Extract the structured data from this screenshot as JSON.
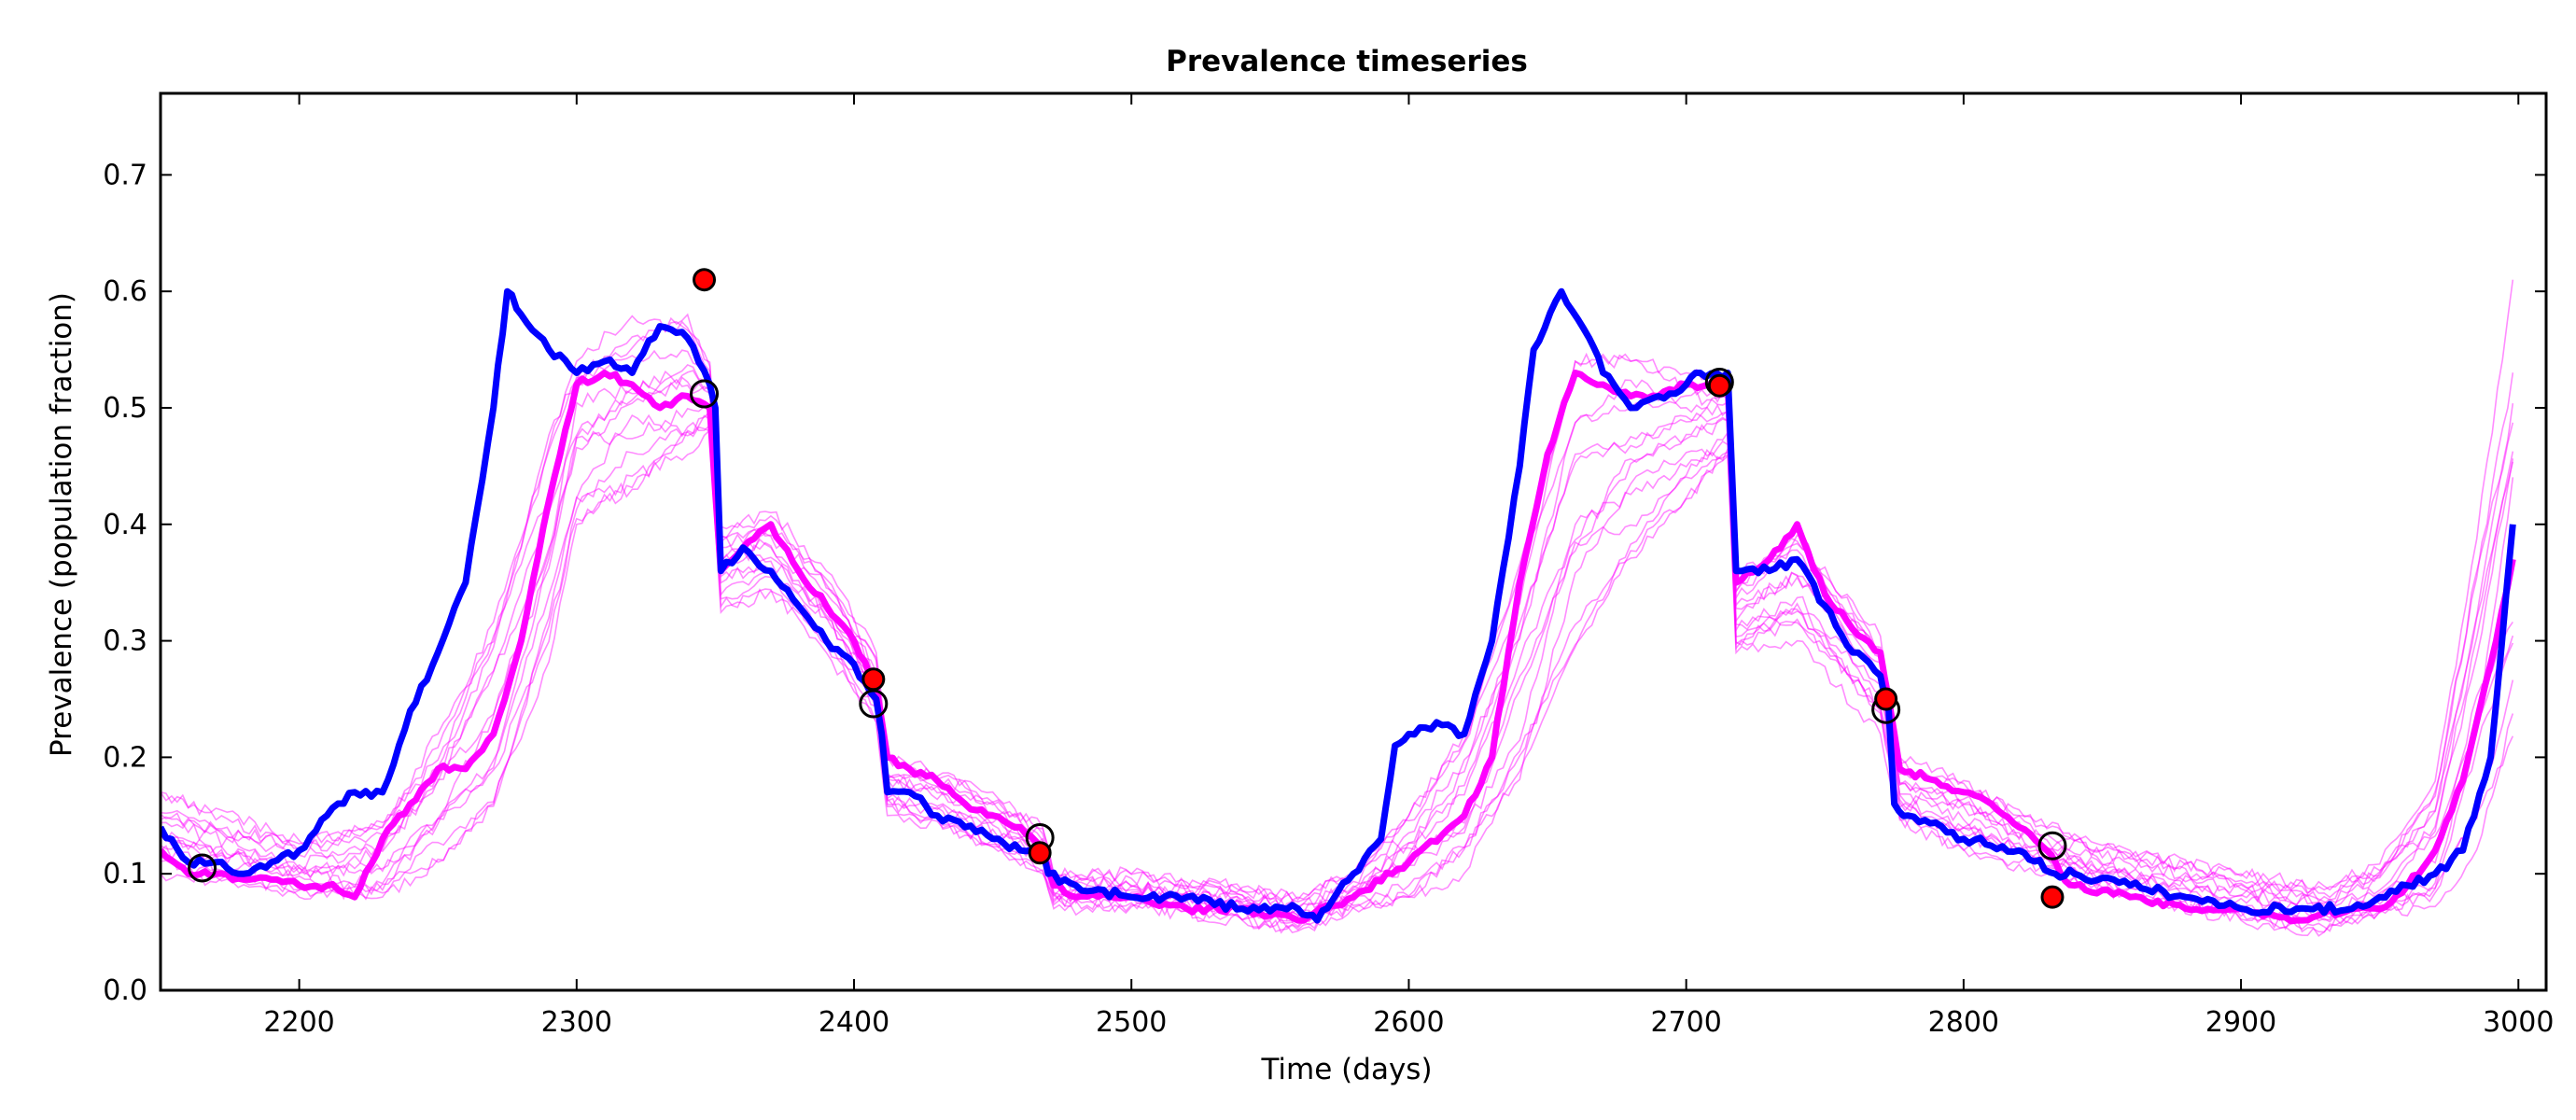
{
  "chart_data": {
    "type": "line",
    "title": "Prevalence timeseries",
    "xlabel": "Time (days)",
    "ylabel": "Prevalence (population fraction)",
    "xlim": [
      2150,
      3010
    ],
    "ylim": [
      0.0,
      0.77
    ],
    "xticks": [
      "2200",
      "2300",
      "2400",
      "2500",
      "2600",
      "2700",
      "2800",
      "2900",
      "3000"
    ],
    "yticks": [
      "0.0",
      "0.1",
      "0.2",
      "0.3",
      "0.4",
      "0.5",
      "0.6",
      "0.7"
    ],
    "grid": false,
    "legend": "none",
    "colors": {
      "model_mean": "#ff00ff",
      "simulation": "#0000ff",
      "ensemble": "#ff00ff",
      "red_marker": "#ff0000",
      "open_marker": "#000000"
    },
    "model_mean": {
      "x": [
        2150,
        2160,
        2170,
        2180,
        2190,
        2200,
        2210,
        2220,
        2230,
        2240,
        2250,
        2260,
        2270,
        2280,
        2290,
        2300,
        2310,
        2320,
        2330,
        2340,
        2348,
        2352,
        2360,
        2370,
        2380,
        2390,
        2400,
        2408,
        2412,
        2420,
        2430,
        2440,
        2450,
        2460,
        2468,
        2472,
        2480,
        2500,
        2520,
        2540,
        2560,
        2580,
        2600,
        2620,
        2630,
        2640,
        2650,
        2660,
        2670,
        2680,
        2690,
        2700,
        2710,
        2715,
        2718,
        2730,
        2740,
        2750,
        2760,
        2770,
        2773,
        2777,
        2790,
        2800,
        2810,
        2820,
        2830,
        2835,
        2840,
        2860,
        2880,
        2900,
        2920,
        2940,
        2950,
        2960,
        2970,
        2980,
        2990,
        2998
      ],
      "y": [
        0.12,
        0.1,
        0.1,
        0.095,
        0.095,
        0.09,
        0.09,
        0.08,
        0.13,
        0.16,
        0.19,
        0.19,
        0.22,
        0.3,
        0.42,
        0.52,
        0.53,
        0.52,
        0.5,
        0.51,
        0.5,
        0.36,
        0.38,
        0.4,
        0.36,
        0.33,
        0.3,
        0.26,
        0.2,
        0.19,
        0.18,
        0.16,
        0.15,
        0.14,
        0.12,
        0.09,
        0.08,
        0.08,
        0.07,
        0.07,
        0.06,
        0.08,
        0.11,
        0.15,
        0.2,
        0.35,
        0.46,
        0.53,
        0.52,
        0.51,
        0.51,
        0.52,
        0.52,
        0.52,
        0.35,
        0.37,
        0.4,
        0.34,
        0.31,
        0.29,
        0.25,
        0.19,
        0.18,
        0.17,
        0.16,
        0.14,
        0.12,
        0.1,
        0.09,
        0.08,
        0.07,
        0.07,
        0.06,
        0.07,
        0.07,
        0.09,
        0.12,
        0.18,
        0.28,
        0.37
      ]
    },
    "simulation": {
      "x": [
        2150,
        2160,
        2170,
        2180,
        2190,
        2200,
        2210,
        2220,
        2230,
        2240,
        2250,
        2260,
        2270,
        2275,
        2280,
        2290,
        2300,
        2310,
        2320,
        2330,
        2340,
        2348,
        2350,
        2352,
        2360,
        2370,
        2380,
        2390,
        2400,
        2408,
        2410,
        2412,
        2420,
        2430,
        2440,
        2450,
        2460,
        2468,
        2470,
        2480,
        2500,
        2520,
        2540,
        2560,
        2567,
        2580,
        2590,
        2595,
        2600,
        2610,
        2620,
        2630,
        2640,
        2645,
        2655,
        2665,
        2670,
        2680,
        2690,
        2700,
        2705,
        2715,
        2718,
        2720,
        2730,
        2740,
        2750,
        2760,
        2770,
        2773,
        2775,
        2780,
        2800,
        2820,
        2833,
        2840,
        2860,
        2880,
        2900,
        2920,
        2940,
        2950,
        2960,
        2970,
        2980,
        2990,
        2998
      ],
      "y": [
        0.14,
        0.11,
        0.11,
        0.1,
        0.11,
        0.12,
        0.15,
        0.17,
        0.17,
        0.24,
        0.29,
        0.35,
        0.5,
        0.6,
        0.58,
        0.55,
        0.53,
        0.54,
        0.53,
        0.57,
        0.56,
        0.52,
        0.5,
        0.36,
        0.38,
        0.36,
        0.33,
        0.3,
        0.28,
        0.25,
        0.22,
        0.17,
        0.17,
        0.15,
        0.14,
        0.13,
        0.12,
        0.12,
        0.1,
        0.09,
        0.08,
        0.08,
        0.07,
        0.07,
        0.06,
        0.1,
        0.13,
        0.21,
        0.22,
        0.23,
        0.22,
        0.3,
        0.45,
        0.55,
        0.6,
        0.56,
        0.53,
        0.5,
        0.51,
        0.52,
        0.53,
        0.53,
        0.36,
        0.36,
        0.36,
        0.37,
        0.33,
        0.29,
        0.27,
        0.24,
        0.16,
        0.15,
        0.13,
        0.12,
        0.1,
        0.1,
        0.09,
        0.08,
        0.07,
        0.07,
        0.07,
        0.08,
        0.09,
        0.1,
        0.12,
        0.2,
        0.4
      ]
    },
    "ensemble_range": {
      "x": [
        2150,
        2200,
        2230,
        2250,
        2270,
        2290,
        2300,
        2320,
        2340,
        2348,
        2352,
        2370,
        2390,
        2408,
        2412,
        2440,
        2468,
        2472,
        2500,
        2540,
        2560,
        2580,
        2600,
        2620,
        2640,
        2660,
        2680,
        2700,
        2715,
        2718,
        2740,
        2770,
        2777,
        2800,
        2830,
        2860,
        2900,
        2930,
        2950,
        2970,
        2985,
        2998
      ],
      "low": [
        0.1,
        0.08,
        0.08,
        0.11,
        0.15,
        0.28,
        0.4,
        0.43,
        0.45,
        0.48,
        0.32,
        0.34,
        0.29,
        0.23,
        0.15,
        0.13,
        0.1,
        0.07,
        0.07,
        0.06,
        0.05,
        0.07,
        0.08,
        0.1,
        0.16,
        0.28,
        0.37,
        0.42,
        0.45,
        0.28,
        0.3,
        0.22,
        0.14,
        0.12,
        0.1,
        0.08,
        0.06,
        0.05,
        0.06,
        0.07,
        0.1,
        0.19
      ],
      "high": [
        0.17,
        0.13,
        0.15,
        0.22,
        0.32,
        0.48,
        0.54,
        0.58,
        0.58,
        0.54,
        0.4,
        0.41,
        0.36,
        0.29,
        0.2,
        0.18,
        0.14,
        0.1,
        0.1,
        0.09,
        0.08,
        0.1,
        0.15,
        0.22,
        0.38,
        0.54,
        0.54,
        0.53,
        0.52,
        0.36,
        0.4,
        0.31,
        0.2,
        0.18,
        0.14,
        0.12,
        0.1,
        0.09,
        0.11,
        0.18,
        0.4,
        0.61
      ]
    },
    "red_markers": [
      {
        "x": 2346,
        "y": 0.61
      },
      {
        "x": 2407,
        "y": 0.267
      },
      {
        "x": 2467,
        "y": 0.118
      },
      {
        "x": 2712,
        "y": 0.519
      },
      {
        "x": 2772,
        "y": 0.25
      },
      {
        "x": 2832,
        "y": 0.08
      }
    ],
    "open_markers": [
      {
        "x": 2165,
        "y": 0.105
      },
      {
        "x": 2346,
        "y": 0.512
      },
      {
        "x": 2407,
        "y": 0.246
      },
      {
        "x": 2467,
        "y": 0.131
      },
      {
        "x": 2712,
        "y": 0.522
      },
      {
        "x": 2772,
        "y": 0.241
      },
      {
        "x": 2832,
        "y": 0.124
      }
    ]
  }
}
